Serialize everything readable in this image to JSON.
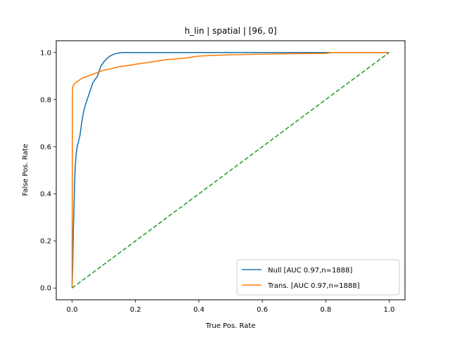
{
  "chart_data": {
    "type": "line",
    "title": "h_lin | spatial | [96, 0]",
    "xlabel": "True Pos. Rate",
    "ylabel": "False Pos. Rate",
    "xlim": [
      -0.05,
      1.05
    ],
    "ylim": [
      -0.05,
      1.05
    ],
    "xticks": [
      "0.0",
      "0.2",
      "0.4",
      "0.6",
      "0.8",
      "1.0"
    ],
    "yticks": [
      "0.0",
      "0.2",
      "0.4",
      "0.6",
      "0.8",
      "1.0"
    ],
    "grid": false,
    "legend_position": "lower-right",
    "series": [
      {
        "name": "Null [AUC 0.97,n=1888]",
        "color": "#1f77b4",
        "style": "solid",
        "x": [
          0.0,
          0.002,
          0.004,
          0.006,
          0.008,
          0.01,
          0.013,
          0.016,
          0.02,
          0.025,
          0.03,
          0.035,
          0.04,
          0.045,
          0.05,
          0.055,
          0.06,
          0.065,
          0.07,
          0.075,
          0.08,
          0.085,
          0.09,
          0.095,
          0.1,
          0.11,
          0.12,
          0.13,
          0.14,
          0.15,
          0.16,
          0.2,
          0.3,
          0.5,
          0.8,
          1.0
        ],
        "y": [
          0.0,
          0.1,
          0.25,
          0.35,
          0.45,
          0.52,
          0.57,
          0.6,
          0.62,
          0.65,
          0.7,
          0.74,
          0.77,
          0.79,
          0.81,
          0.83,
          0.85,
          0.87,
          0.88,
          0.89,
          0.9,
          0.92,
          0.94,
          0.95,
          0.96,
          0.975,
          0.985,
          0.992,
          0.996,
          0.998,
          1.0,
          1.0,
          1.0,
          1.0,
          1.0,
          1.0
        ]
      },
      {
        "name": "Trans. [AUC 0.97,n=1888]",
        "color": "#ff7f0e",
        "style": "solid",
        "x": [
          0.0,
          0.001,
          0.002,
          0.004,
          0.006,
          0.008,
          0.01,
          0.015,
          0.02,
          0.03,
          0.04,
          0.05,
          0.06,
          0.07,
          0.08,
          0.09,
          0.1,
          0.12,
          0.15,
          0.18,
          0.2,
          0.25,
          0.3,
          0.35,
          0.4,
          0.45,
          0.5,
          0.6,
          0.7,
          0.8,
          0.82,
          0.9,
          1.0
        ],
        "y": [
          0.0,
          0.84,
          0.855,
          0.86,
          0.865,
          0.868,
          0.87,
          0.875,
          0.88,
          0.89,
          0.895,
          0.9,
          0.905,
          0.91,
          0.915,
          0.92,
          0.925,
          0.93,
          0.94,
          0.945,
          0.95,
          0.96,
          0.97,
          0.975,
          0.985,
          0.988,
          0.99,
          0.993,
          0.995,
          0.996,
          1.0,
          1.0,
          1.0
        ]
      },
      {
        "name": "",
        "color": "#2ca02c",
        "style": "dashed",
        "x": [
          0.0,
          1.0
        ],
        "y": [
          0.0,
          1.0
        ]
      }
    ]
  }
}
